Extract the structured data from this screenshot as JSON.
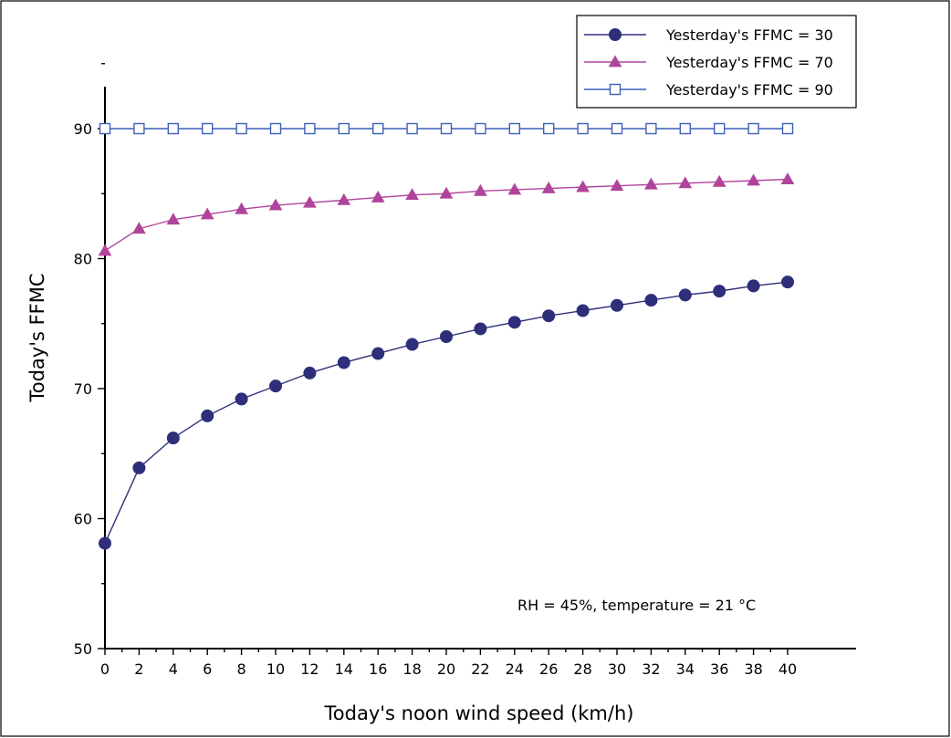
{
  "chart_data": {
    "type": "line",
    "xlabel": "Today's noon wind speed (km/h)",
    "ylabel": "Today's FFMC",
    "xlim": [
      0,
      40
    ],
    "ylim": [
      50,
      95
    ],
    "xticks": [
      0,
      2,
      4,
      6,
      8,
      10,
      12,
      14,
      16,
      18,
      20,
      22,
      24,
      26,
      28,
      30,
      32,
      34,
      36,
      38,
      40
    ],
    "yticks": [
      50,
      60,
      70,
      80,
      90
    ],
    "annotation": "RH = 45%, temperature = 21 °C",
    "legend_position": "top-right",
    "grid": false,
    "x": [
      0,
      2,
      4,
      6,
      8,
      10,
      12,
      14,
      16,
      18,
      20,
      22,
      24,
      26,
      28,
      30,
      32,
      34,
      36,
      38,
      40
    ],
    "series": [
      {
        "name": "Yesterday's FFMC = 30",
        "color": "#2e2e7a",
        "marker": "circle",
        "values": [
          58.1,
          63.9,
          66.2,
          67.9,
          69.2,
          70.2,
          71.2,
          72.0,
          72.7,
          73.4,
          74.0,
          74.6,
          75.1,
          75.6,
          76.0,
          76.4,
          76.8,
          77.2,
          77.5,
          77.9,
          78.2
        ]
      },
      {
        "name": "Yesterday's FFMC = 70",
        "color": "#b0449b",
        "marker": "triangle",
        "values": [
          80.6,
          82.3,
          83.0,
          83.4,
          83.8,
          84.1,
          84.3,
          84.5,
          84.7,
          84.9,
          85.0,
          85.2,
          85.3,
          85.4,
          85.5,
          85.6,
          85.7,
          85.8,
          85.9,
          86.0,
          86.1
        ]
      },
      {
        "name": "Yesterday's FFMC = 90",
        "color": "#3d5fb8",
        "marker": "square-open",
        "values": [
          90,
          90,
          90,
          90,
          90,
          90,
          90,
          90,
          90,
          90,
          90,
          90,
          90,
          90,
          90,
          90,
          90,
          90,
          90,
          90,
          90
        ]
      }
    ]
  }
}
